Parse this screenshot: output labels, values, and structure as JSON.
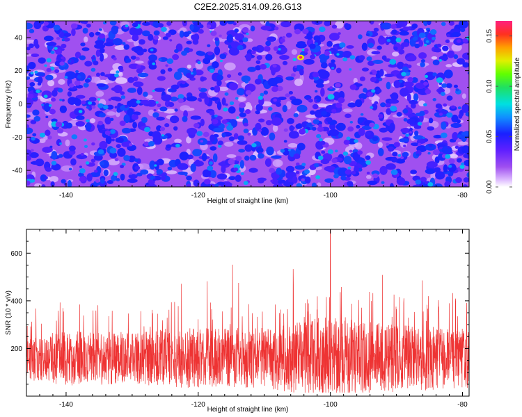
{
  "figure": {
    "title": "C2E2.2025.314.09.26.G13"
  },
  "colors": {
    "spectrogram_background": "#a050f0",
    "snr_line": "#ee3333",
    "axis": "#000000"
  },
  "chart_data": [
    {
      "type": "heatmap",
      "title": "C2E2.2025.314.09.26.G13",
      "xlabel": "Height of straight line (km)",
      "ylabel": "Frequency (Hz)",
      "xlim": [
        -146,
        -79
      ],
      "ylim": [
        -50,
        50
      ],
      "xticks": [
        -140,
        -120,
        -100,
        -80
      ],
      "xtick_labels": [
        "-140",
        "-120",
        "-100",
        "-80"
      ],
      "yticks": [
        -40,
        -20,
        0,
        20,
        40
      ],
      "ytick_labels": [
        "-40",
        "-20",
        "0",
        "20",
        "40"
      ],
      "colorbar": {
        "label": "Normalized spectral amplitude",
        "range": [
          0.0,
          0.165
        ],
        "ticks": [
          0.0,
          0.05,
          0.1,
          0.15
        ],
        "tick_labels": [
          "0.00",
          "0.05",
          "0.10",
          "0.15"
        ],
        "colormap": "white-purple-blue-cyan-green-yellow-orange-red"
      },
      "description_values": {
        "typical_amplitude": 0.03,
        "max_amplitude": 0.16,
        "peak_location_km": -104.5,
        "peak_location_hz": 28
      }
    },
    {
      "type": "line",
      "title": "",
      "xlabel": "Height of straight line (km)",
      "ylabel": "SNR (10 * v/v)",
      "xlim": [
        -146,
        -79
      ],
      "ylim": [
        0,
        700
      ],
      "xticks": [
        -140,
        -120,
        -100,
        -80
      ],
      "xtick_labels": [
        "-140",
        "-120",
        "-100",
        "-80"
      ],
      "yticks": [
        200,
        400,
        600
      ],
      "ytick_labels": [
        "200",
        "400",
        "600"
      ],
      "series": [
        {
          "name": "SNR",
          "baseline_mean": 160,
          "typical_peak": 300,
          "max_peak": 700,
          "max_peak_x": -100,
          "envelope": [
            {
              "x": -146,
              "upper": 260
            },
            {
              "x": -140,
              "upper": 290
            },
            {
              "x": -130,
              "upper": 280
            },
            {
              "x": -124,
              "upper": 300
            },
            {
              "x": -118,
              "upper": 300
            },
            {
              "x": -110,
              "upper": 300
            },
            {
              "x": -104,
              "upper": 330
            },
            {
              "x": -100,
              "upper": 360
            },
            {
              "x": -95,
              "upper": 340
            },
            {
              "x": -90,
              "upper": 320
            },
            {
              "x": -85,
              "upper": 310
            },
            {
              "x": -79,
              "upper": 300
            }
          ]
        }
      ]
    }
  ]
}
